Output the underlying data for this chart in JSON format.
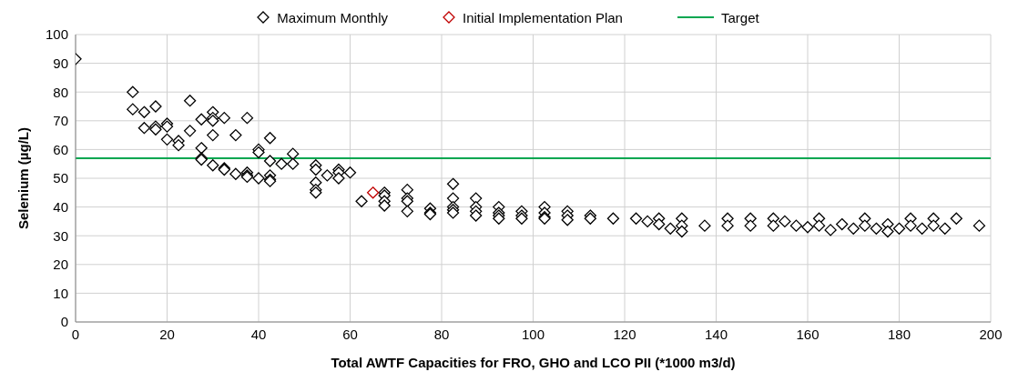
{
  "chart_data": {
    "type": "scatter",
    "xlabel": "Total AWTF Capacities for FRO, GHO and LCO PII (*1000 m3/d)",
    "ylabel": "Selenium (µg/L)",
    "xlim": [
      0,
      200
    ],
    "xticks": [
      0,
      20,
      40,
      60,
      80,
      100,
      120,
      140,
      160,
      180,
      200
    ],
    "ylim": [
      0,
      100
    ],
    "yticks": [
      0,
      10,
      20,
      30,
      40,
      50,
      60,
      70,
      80,
      90,
      100
    ],
    "grid": true,
    "legend": "top",
    "marker": "diamond",
    "series": [
      {
        "name": "Maximum Monthly",
        "color": "#000000",
        "x": [
          0,
          12.5,
          12.5,
          15,
          15,
          17.5,
          17.5,
          17.5,
          20,
          20,
          20,
          22.5,
          22.5,
          25,
          25,
          27.5,
          27.5,
          27.5,
          27.5,
          30,
          30,
          30,
          30,
          30,
          32.5,
          32.5,
          32.5,
          35,
          35,
          37.5,
          37.5,
          37.5,
          37.5,
          40,
          40,
          40,
          42.5,
          42.5,
          42.5,
          42.5,
          42.5,
          45,
          47.5,
          47.5,
          52.5,
          52.5,
          52.5,
          52.5,
          52.5,
          55,
          57.5,
          57.5,
          57.5,
          60,
          62.5,
          67.5,
          67.5,
          67.5,
          67.5,
          72.5,
          72.5,
          72.5,
          72.5,
          77.5,
          77.5,
          77.5,
          82.5,
          82.5,
          82.5,
          82.5,
          82.5,
          87.5,
          87.5,
          87.5,
          87.5,
          92.5,
          92.5,
          92.5,
          92.5,
          97.5,
          97.5,
          97.5,
          102.5,
          102.5,
          102.5,
          102.5,
          107.5,
          107.5,
          107.5,
          112.5,
          112.5,
          117.5,
          122.5,
          125,
          127.5,
          127.5,
          130,
          132.5,
          132.5,
          132.5,
          137.5,
          142.5,
          142.5,
          147.5,
          147.5,
          152.5,
          152.5,
          155,
          157.5,
          160,
          162.5,
          162.5,
          165,
          167.5,
          170,
          172.5,
          172.5,
          175,
          177.5,
          177.5,
          180,
          182.5,
          182.5,
          185,
          187.5,
          187.5,
          190,
          192.5,
          197.5
        ],
        "values": [
          91.5,
          80,
          74,
          73,
          67.5,
          75,
          68,
          67,
          69,
          68,
          63.5,
          63,
          61.5,
          77,
          66.5,
          70.5,
          60.5,
          57,
          56.5,
          73,
          71,
          70,
          65,
          54.5,
          71,
          53.5,
          53,
          65,
          51.5,
          71,
          52,
          51,
          50.5,
          60,
          59,
          50,
          64,
          56,
          51,
          49.5,
          49,
          55,
          58.5,
          55,
          54.5,
          53,
          48.5,
          46,
          45,
          51,
          53,
          52,
          50,
          52,
          42,
          45,
          44,
          42,
          40.5,
          46,
          43,
          42,
          38.5,
          39.5,
          38,
          37.5,
          48,
          43,
          40,
          39,
          38,
          43,
          40,
          38.5,
          37,
          40,
          38,
          37,
          36,
          38.5,
          37,
          36,
          40,
          38,
          36.5,
          36,
          38.5,
          37,
          35.5,
          37,
          36,
          36,
          36,
          35,
          36,
          34,
          32.5,
          36,
          33.5,
          31.5,
          33.5,
          36,
          33.5,
          36,
          33.5,
          36,
          33.5,
          35,
          33.5,
          33,
          36,
          33.5,
          32,
          34,
          32.5,
          36,
          33.5,
          32.5,
          34,
          31.5,
          32.5,
          36,
          33.5,
          32.5,
          36,
          33.5,
          32.5,
          36,
          33.5
        ]
      },
      {
        "name": "Initial Implementation Plan",
        "color": "#c00000",
        "x": [
          65
        ],
        "values": [
          45
        ]
      },
      {
        "name": "Target",
        "type": "line",
        "color": "#00a650",
        "x": [
          0,
          200
        ],
        "values": [
          57,
          57
        ],
        "marker": "none",
        "line_style": "solid"
      }
    ]
  }
}
